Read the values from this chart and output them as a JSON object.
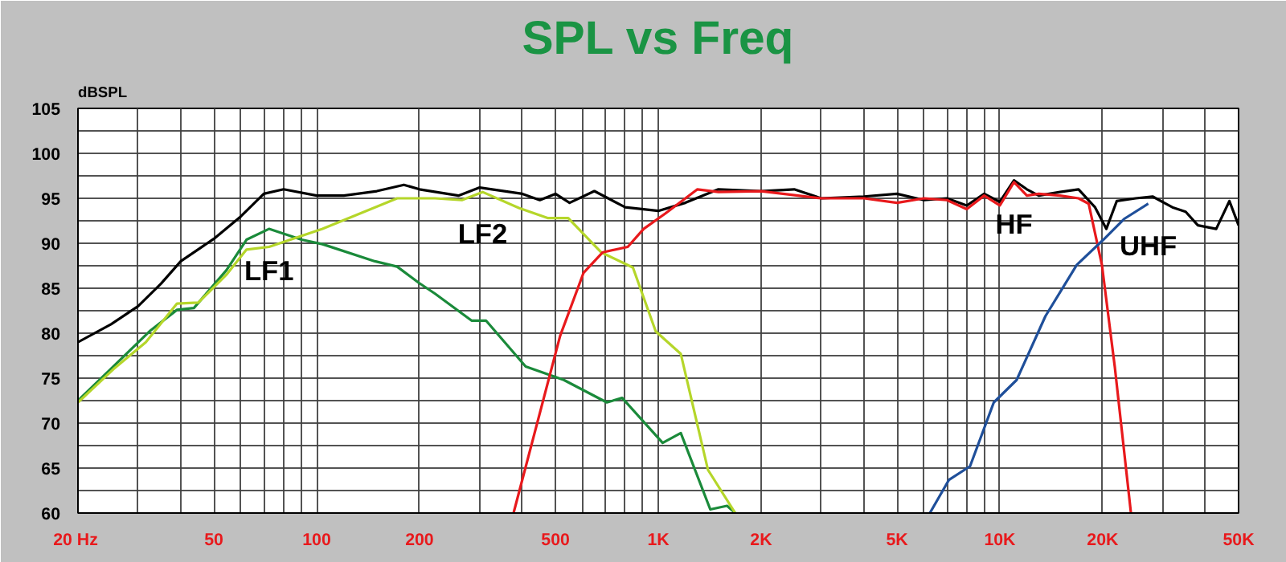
{
  "chart_data": {
    "type": "line",
    "title": "SPL vs Freq",
    "ylabel": "dBSPL",
    "log": "x",
    "grid": true,
    "line_style": "solid",
    "marker": "none",
    "xlim": [
      20,
      50000
    ],
    "ylim": [
      60,
      105
    ],
    "xticks": [
      {
        "value": 20,
        "label": "20  Hz"
      },
      50,
      100,
      200,
      500,
      {
        "value": 1000,
        "label": "1K"
      },
      {
        "value": 2000,
        "label": "2K"
      },
      {
        "value": 5000,
        "label": "5K"
      },
      {
        "value": 10000,
        "label": "10K"
      },
      {
        "value": 20000,
        "label": "20K"
      },
      {
        "value": 50000,
        "label": "50K"
      }
    ],
    "yticks": [
      60,
      65,
      70,
      75,
      80,
      85,
      90,
      95,
      100,
      105
    ],
    "series": [
      {
        "color": "#000000",
        "x": [
          20,
          25,
          30,
          35,
          40,
          50,
          60,
          70,
          80,
          100,
          120,
          150,
          180,
          200,
          260,
          300,
          400,
          450,
          500,
          550,
          650,
          800,
          1000,
          1200,
          1500,
          2000,
          2500,
          3000,
          4000,
          5000,
          6000,
          7000,
          8000,
          9000,
          10000,
          11000,
          12000,
          13000,
          15000,
          17000,
          19000,
          20500,
          22000,
          25000,
          28000,
          32000,
          35000,
          38000,
          43000,
          47000,
          50000
        ],
        "values": [
          79,
          81,
          83,
          85.5,
          88,
          90.5,
          93,
          95.5,
          96,
          95.3,
          95.3,
          95.8,
          96.5,
          96,
          95.3,
          96.2,
          95.5,
          94.8,
          95.5,
          94.5,
          95.8,
          94,
          93.6,
          94.5,
          96,
          95.8,
          96,
          95,
          95.2,
          95.5,
          94.8,
          95,
          94.2,
          95.5,
          94.6,
          97,
          96,
          95.3,
          95.7,
          96,
          94,
          91.6,
          94.7,
          95,
          95.2,
          94,
          93.5,
          92,
          91.6,
          94.7,
          92
        ]
      },
      {
        "name": "LF1",
        "color": "#1a8a3a",
        "x": [
          20,
          25.4,
          32.6,
          39,
          43.7,
          54.4,
          62.3,
          72.5,
          90.3,
          104,
          148,
          172,
          199,
          222,
          284,
          313,
          409,
          529,
          707,
          784,
          1030,
          1164,
          1420,
          1590,
          1680
        ],
        "values": [
          72.5,
          76.3,
          80.3,
          82.6,
          82.8,
          87,
          90.4,
          91.6,
          90.4,
          89.9,
          88,
          87.4,
          85.6,
          84.4,
          81.4,
          81.4,
          76.3,
          74.8,
          72.3,
          72.8,
          67.8,
          68.9,
          60.4,
          60.8,
          60
        ]
      },
      {
        "name": "LF2",
        "color": "#b5d62a",
        "x": [
          20,
          25.4,
          31.6,
          39,
          45,
          54.4,
          62.3,
          72.5,
          104,
          172,
          199,
          222,
          266,
          306,
          392,
          476,
          545,
          680,
          843,
          983,
          1164,
          1398,
          1680
        ],
        "values": [
          72.3,
          76,
          79,
          83.3,
          83.4,
          86.5,
          89.3,
          89.6,
          91.6,
          95,
          95,
          95,
          94.8,
          95.7,
          93.9,
          92.8,
          92.8,
          89,
          87.3,
          80.2,
          77.7,
          64.8,
          60
        ]
      },
      {
        "name": "HF",
        "color": "#e8191c",
        "x": [
          377,
          516,
          604,
          688,
          814,
          906,
          1048,
          1302,
          1500,
          2000,
          3000,
          4000,
          5000,
          6000,
          7000,
          8000,
          9000,
          10000,
          11000,
          12000,
          13000,
          15000,
          17000,
          18200,
          19900,
          21700,
          24200
        ],
        "values": [
          60,
          79.7,
          86.7,
          89,
          89.6,
          91.6,
          93.3,
          96,
          95.7,
          95.8,
          95,
          95,
          94.5,
          95,
          94.8,
          93.8,
          95.3,
          94.2,
          96.8,
          95.3,
          95.5,
          95.3,
          95,
          94.4,
          87.6,
          76.3,
          60
        ]
      },
      {
        "name": "UHF",
        "color": "#1f4f9a",
        "x": [
          6240,
          7100,
          8180,
          9600,
          11200,
          13600,
          16800,
          20100,
          23100,
          27200
        ],
        "values": [
          60,
          63.7,
          65.2,
          72.3,
          74.8,
          81.9,
          87.6,
          90.4,
          92.7,
          94.4
        ]
      }
    ]
  }
}
